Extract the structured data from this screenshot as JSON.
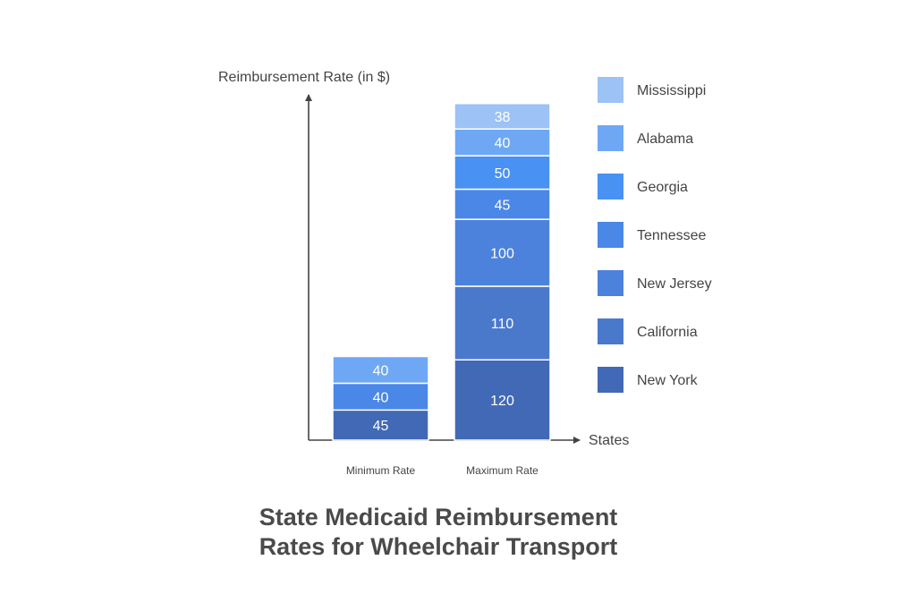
{
  "chart_data": {
    "type": "bar",
    "stacked": true,
    "title_lines": [
      "State Medicaid Reimbursement",
      "Rates for Wheelchair Transport"
    ],
    "ylabel": "Reimbursement Rate (in $)",
    "xlabel": "States",
    "categories": [
      "Minimum Rate",
      "Maximum Rate"
    ],
    "series": [
      {
        "name": "New York",
        "color": "#4169b5",
        "values": [
          45,
          120
        ]
      },
      {
        "name": "California",
        "color": "#4a79cc",
        "values": [
          null,
          110
        ]
      },
      {
        "name": "New Jersey",
        "color": "#4d82dc",
        "values": [
          null,
          100
        ]
      },
      {
        "name": "Tennessee",
        "color": "#4a87e6",
        "values": [
          40,
          45
        ]
      },
      {
        "name": "Georgia",
        "color": "#4991f3",
        "values": [
          null,
          50
        ]
      },
      {
        "name": "Alabama",
        "color": "#6ea8f5",
        "values": [
          40,
          40
        ]
      },
      {
        "name": "Mississippi",
        "color": "#9cc2f6",
        "values": [
          null,
          38
        ]
      }
    ],
    "legend_position": "right",
    "grid": false
  }
}
